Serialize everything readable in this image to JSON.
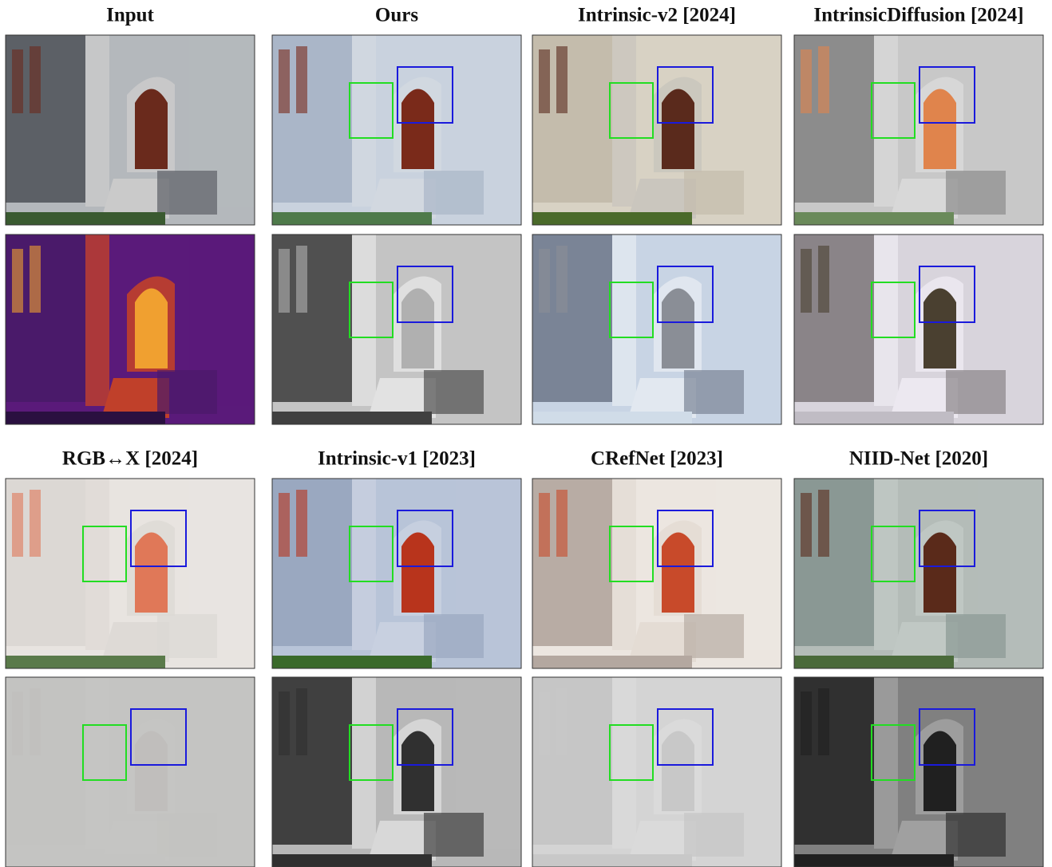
{
  "figure": {
    "titles": [
      "Input",
      "Ours",
      "Intrinsic-v2 [2024]",
      "IntrinsicDiffusion [2024]",
      "RGB↔X [2024]",
      "Intrinsic-v1 [2023]",
      "CRefNet [2023]",
      "NIID-Net [2020]"
    ]
  }
}
